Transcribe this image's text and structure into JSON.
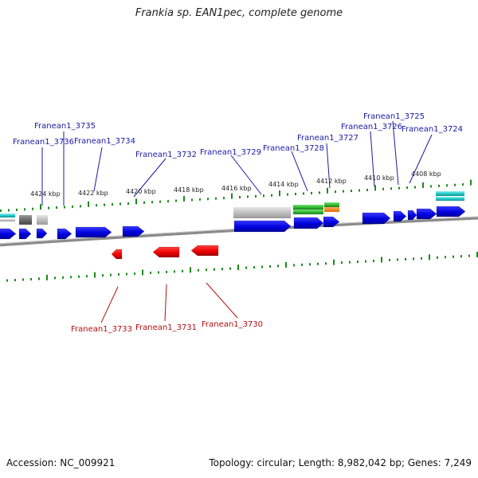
{
  "title": "Frankia sp. EAN1pec, complete genome",
  "footer": {
    "accession": "Accession: NC_009921",
    "summary": "Topology: circular; Length: 8,982,042 bp; Genes: 7,249"
  },
  "colors": {
    "forward_gene": "#0000dd",
    "reverse_gene": "#ee0000",
    "forward_label": "#1a1aa6",
    "reverse_label": "#b01010",
    "tick": "#1a8a1a",
    "backbone": "#7a7a7a",
    "cyan_feature": "#22cccc",
    "gray_feature": "#bdbdbd",
    "dark_feature": "#707070",
    "green_feature": "#33bb33",
    "orange_feature": "#ff8800"
  },
  "kbp_labels": [
    "4424 kbp",
    "4422 kbp",
    "4420 kbp",
    "4418 kbp",
    "4416 kbp",
    "4414 kbp",
    "4412 kbp",
    "4410 kbp",
    "4408 kbp"
  ],
  "forward_gene_labels": [
    "Franean1_3736",
    "Franean1_3735",
    "Franean1_3734",
    "Franean1_3732",
    "Franean1_3729",
    "Franean1_3728",
    "Franean1_3727",
    "Franean1_3726",
    "Franean1_3725",
    "Franean1_3724"
  ],
  "reverse_gene_labels": [
    "Franean1_3733",
    "Franean1_3731",
    "Franean1_3730"
  ]
}
